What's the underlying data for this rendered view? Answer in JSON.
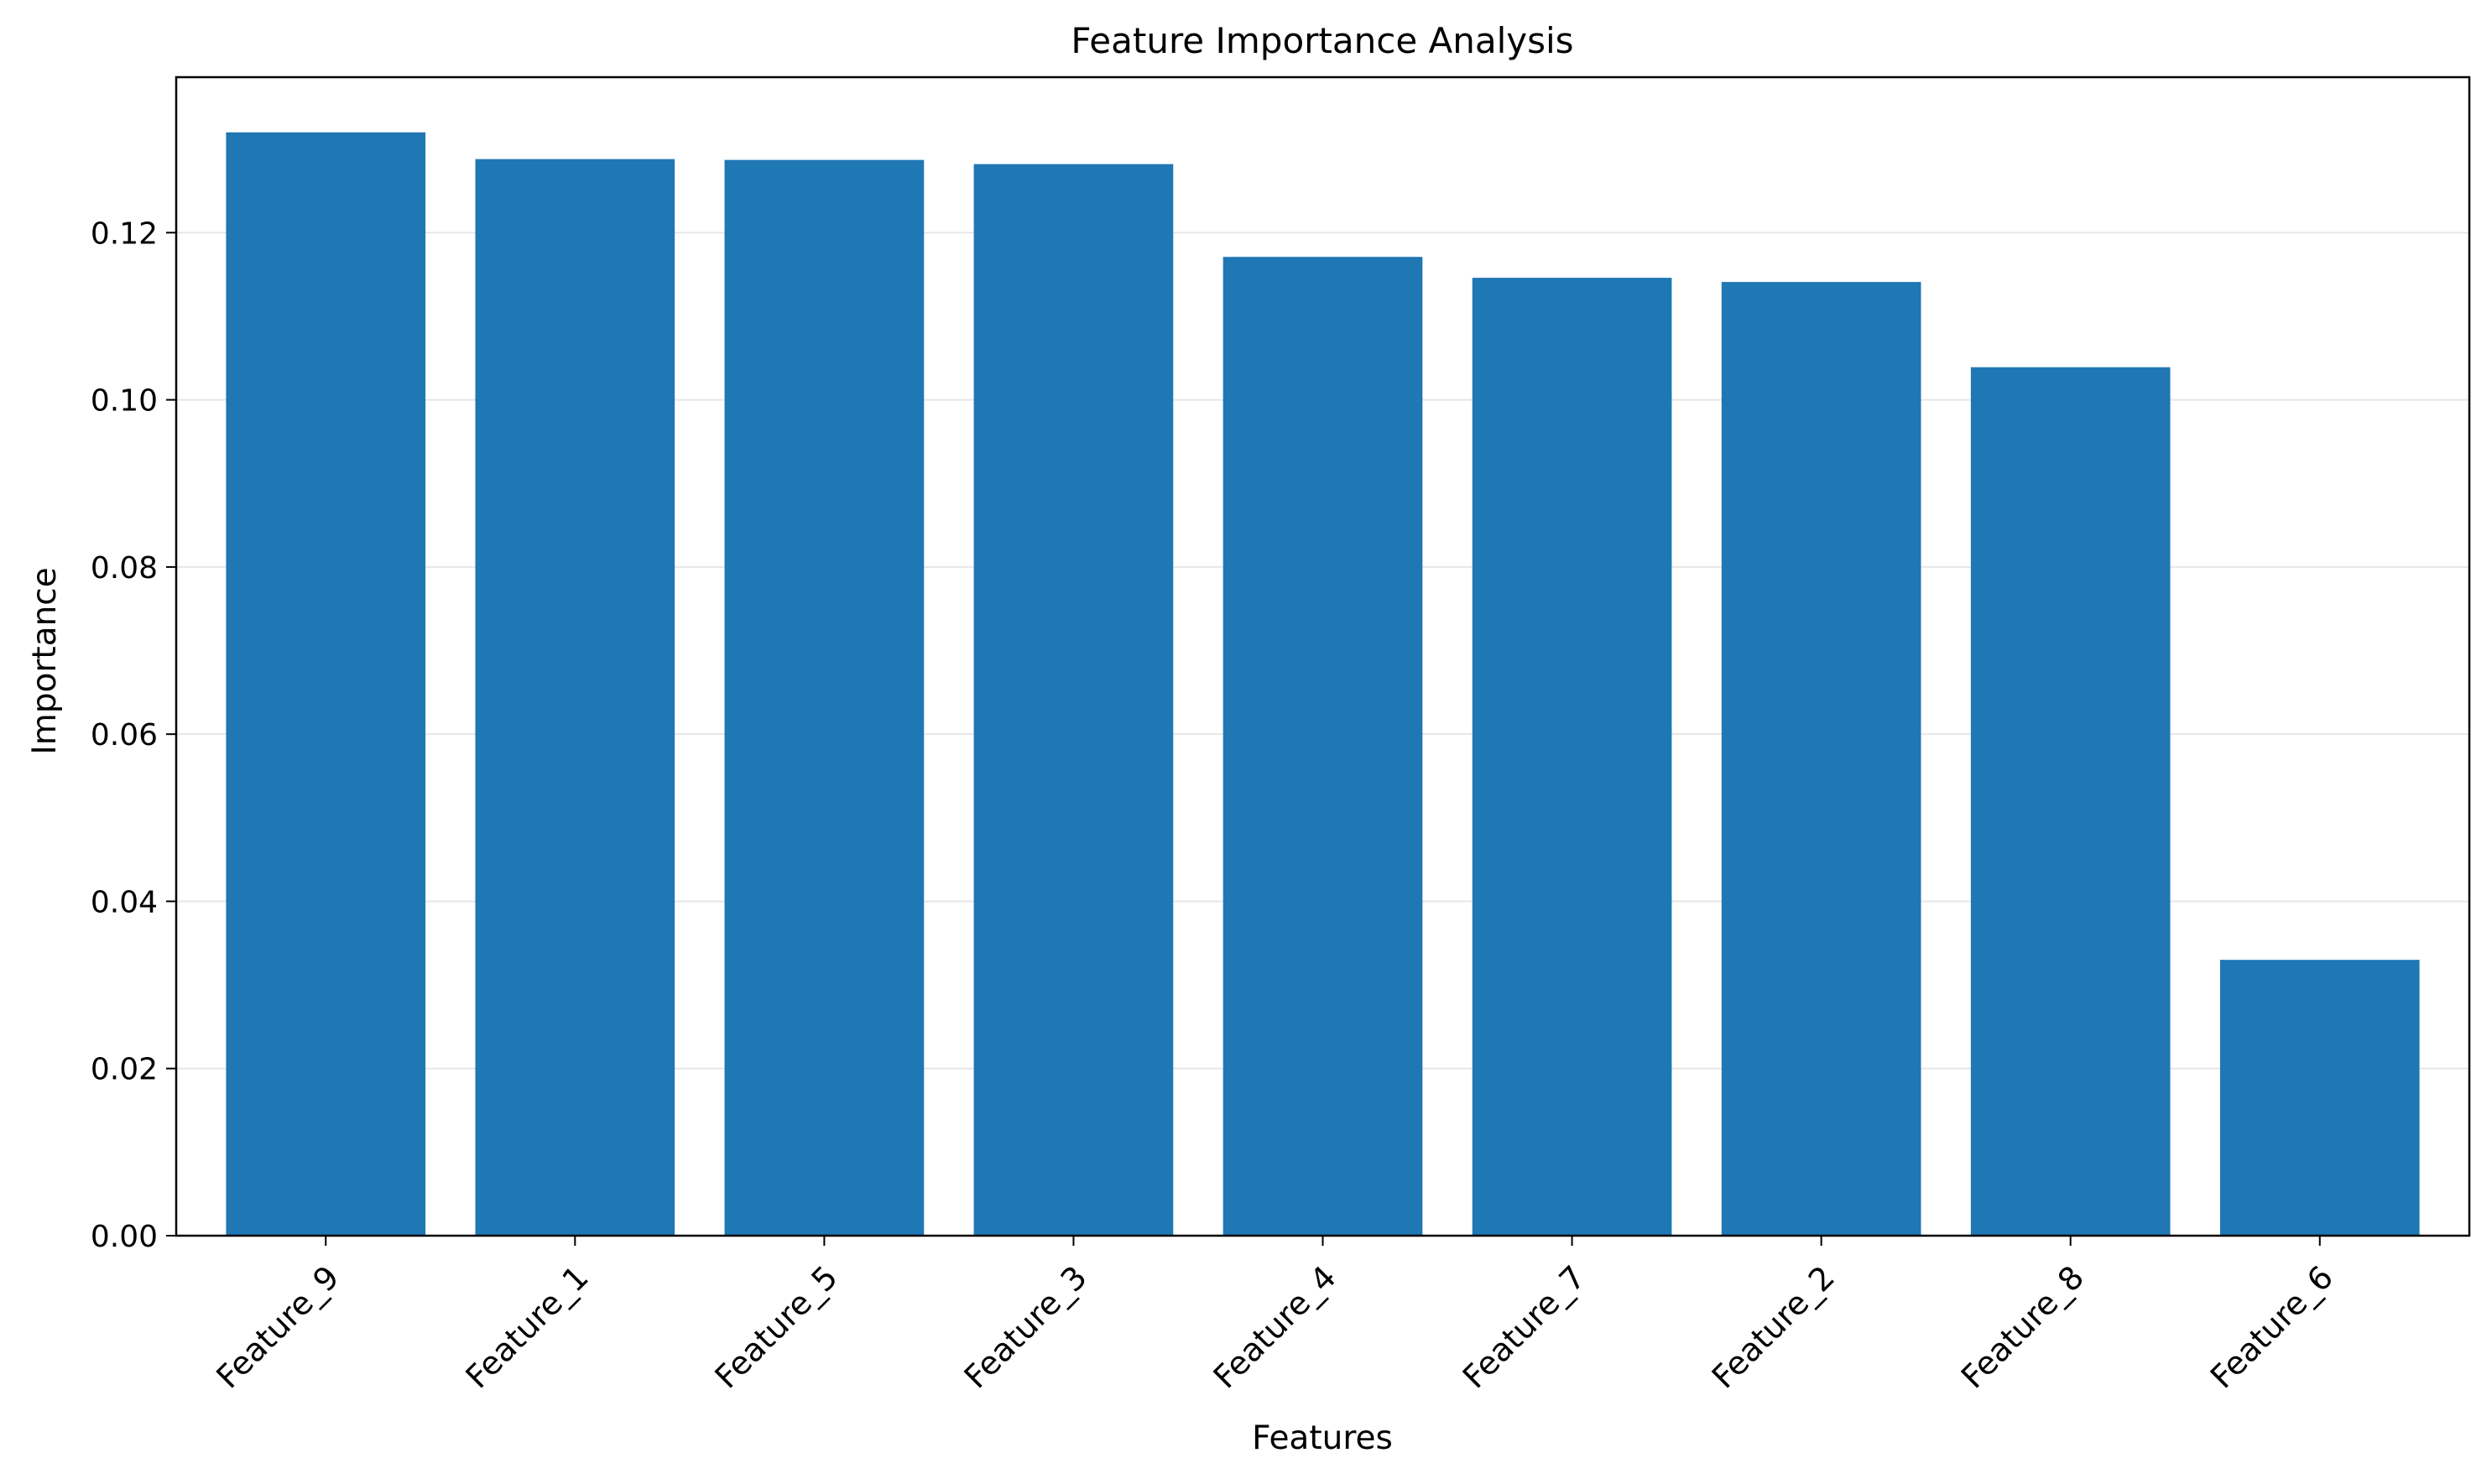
{
  "chart_data": {
    "type": "bar",
    "title": "Feature Importance Analysis",
    "xlabel": "Features",
    "ylabel": "Importance",
    "categories": [
      "Feature_9",
      "Feature_1",
      "Feature_5",
      "Feature_3",
      "Feature_4",
      "Feature_7",
      "Feature_2",
      "Feature_8",
      "Feature_6"
    ],
    "values": [
      0.132,
      0.1288,
      0.1287,
      0.1282,
      0.1171,
      0.1146,
      0.1141,
      0.1039,
      0.033
    ],
    "ylim": [
      0,
      0.1386
    ],
    "yticks": [
      0.0,
      0.02,
      0.04,
      0.06,
      0.08,
      0.1,
      0.12
    ],
    "ytick_labels": [
      "0.00",
      "0.02",
      "0.04",
      "0.06",
      "0.08",
      "0.10",
      "0.12"
    ],
    "grid": "horizontal",
    "colors": {
      "bar": "#1f77b4",
      "grid": "#e6e6e6",
      "axis": "#000000"
    }
  }
}
